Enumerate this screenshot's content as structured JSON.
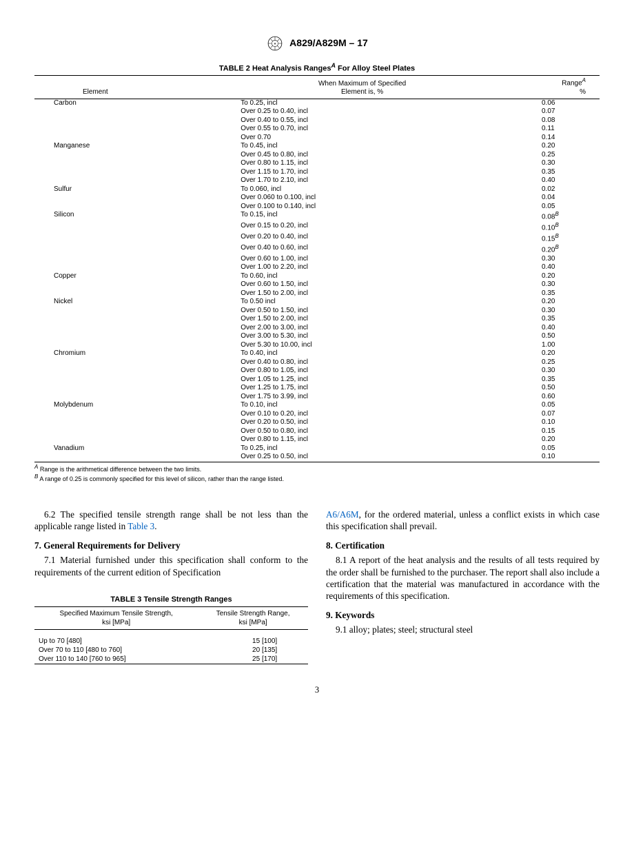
{
  "standard_title": "A829/A829M – 17",
  "table2": {
    "caption_prefix": "TABLE 2 Heat Analysis Ranges",
    "caption_sup": "A",
    "caption_suffix": " For Alloy Steel Plates",
    "header_col1": "Element",
    "header_col2_line1": "When Maximum of Specified",
    "header_col2_line2": "Element is, %",
    "header_col3_line1": "Range",
    "header_col3_sup": "A",
    "header_col3_line2": "%",
    "groups": [
      {
        "element": "Carbon",
        "rows": [
          {
            "cond": "To 0.25, incl",
            "range": "0.06"
          },
          {
            "cond": "Over 0.25 to 0.40, incl",
            "range": "0.07"
          },
          {
            "cond": "Over 0.40 to 0.55, incl",
            "range": "0.08"
          },
          {
            "cond": "Over 0.55 to 0.70, incl",
            "range": "0.11"
          },
          {
            "cond": "Over 0.70",
            "range": "0.14"
          }
        ]
      },
      {
        "element": "Manganese",
        "rows": [
          {
            "cond": "To 0.45, incl",
            "range": "0.20"
          },
          {
            "cond": "Over 0.45 to 0.80, incl",
            "range": "0.25"
          },
          {
            "cond": "Over 0.80 to 1.15, incl",
            "range": "0.30"
          },
          {
            "cond": "Over 1.15 to 1.70, incl",
            "range": "0.35"
          },
          {
            "cond": "Over 1.70 to 2.10, incl",
            "range": "0.40"
          }
        ]
      },
      {
        "element": "Sulfur",
        "rows": [
          {
            "cond": "To 0.060, incl",
            "range": "0.02"
          },
          {
            "cond": "Over 0.060 to 0.100, incl",
            "range": "0.04"
          },
          {
            "cond": "Over 0.100 to 0.140, incl",
            "range": "0.05"
          }
        ]
      },
      {
        "element": "Silicon",
        "rows": [
          {
            "cond": "To 0.15, incl",
            "range": "0.08",
            "sup": "B"
          },
          {
            "cond": "Over 0.15 to 0.20, incl",
            "range": "0.10",
            "sup": "B"
          },
          {
            "cond": "Over 0.20 to 0.40, incl",
            "range": "0.15",
            "sup": "B"
          },
          {
            "cond": "Over 0.40 to 0.60, incl",
            "range": "0.20",
            "sup": "B"
          },
          {
            "cond": "Over 0.60 to 1.00, incl",
            "range": "0.30"
          },
          {
            "cond": "Over 1.00 to 2.20, incl",
            "range": "0.40"
          }
        ]
      },
      {
        "element": "Copper",
        "rows": [
          {
            "cond": "To 0.60, incl",
            "range": "0.20"
          },
          {
            "cond": "Over 0.60 to 1.50, incl",
            "range": "0.30"
          },
          {
            "cond": "Over 1.50 to 2.00, incl",
            "range": "0.35"
          }
        ]
      },
      {
        "element": "Nickel",
        "rows": [
          {
            "cond": "To 0.50 incl",
            "range": "0.20"
          },
          {
            "cond": "Over 0.50 to 1.50, incl",
            "range": "0.30"
          },
          {
            "cond": "Over 1.50 to 2.00, incl",
            "range": "0.35"
          },
          {
            "cond": "Over 2.00 to 3.00, incl",
            "range": "0.40"
          },
          {
            "cond": "Over 3.00 to 5.30, incl",
            "range": "0.50"
          },
          {
            "cond": "Over 5.30 to 10.00, incl",
            "range": "1.00"
          }
        ]
      },
      {
        "element": "Chromium",
        "rows": [
          {
            "cond": "To 0.40, incl",
            "range": "0.20"
          },
          {
            "cond": "Over 0.40 to 0.80, incl",
            "range": "0.25"
          },
          {
            "cond": "Over 0.80 to 1.05, incl",
            "range": "0.30"
          },
          {
            "cond": "Over 1.05 to 1.25, incl",
            "range": "0.35"
          },
          {
            "cond": "Over 1.25 to 1.75, incl",
            "range": "0.50"
          },
          {
            "cond": "Over 1.75 to 3.99, incl",
            "range": "0.60"
          }
        ]
      },
      {
        "element": "Molybdenum",
        "rows": [
          {
            "cond": "To 0.10, incl",
            "range": "0.05"
          },
          {
            "cond": "Over 0.10 to 0.20, incl",
            "range": "0.07"
          },
          {
            "cond": "Over 0.20 to 0.50, incl",
            "range": "0.10"
          },
          {
            "cond": "Over 0.50 to 0.80, incl",
            "range": "0.15"
          },
          {
            "cond": "Over 0.80 to 1.15, incl",
            "range": "0.20"
          }
        ]
      },
      {
        "element": "Vanadium",
        "rows": [
          {
            "cond": "To 0.25, incl",
            "range": "0.05"
          },
          {
            "cond": "Over 0.25 to 0.50, incl",
            "range": "0.10"
          }
        ]
      }
    ],
    "footnote_a_mark": "A",
    "footnote_a": " Range is the arithmetical difference between the two limits.",
    "footnote_b_mark": "B",
    "footnote_b": " A range of 0.25 is commonly specified for this level of silicon, rather than the range listed."
  },
  "body": {
    "p62": "6.2 The specified tensile strength range shall be not less than the applicable range listed in ",
    "p62_link": "Table 3",
    "p62_suffix": ".",
    "head7": "7. General Requirements for Delivery",
    "p71": "7.1 Material furnished under this specification shall conform to the requirements of the current edition of Specification ",
    "a6_link": "A6/A6M",
    "p_right1": ", for the ordered material, unless a conflict exists in which case this specification shall prevail.",
    "head8": "8. Certification",
    "p81": "8.1 A report of the heat analysis and the results of all tests required by the order shall be furnished to the purchaser. The report shall also include a certification that the material was manufactured in accordance with the requirements of this specification.",
    "head9": "9. Keywords",
    "p91": "9.1 alloy; plates; steel; structural steel"
  },
  "table3": {
    "caption": "TABLE 3 Tensile Strength Ranges",
    "header_col1_line1": "Specified Maximum Tensile Strength,",
    "header_col1_line2": "ksi [MPa]",
    "header_col2_line1": "Tensile Strength Range,",
    "header_col2_line2": "ksi [MPa]",
    "rows": [
      {
        "c1": "Up to 70 [480]",
        "c2": "15 [100]"
      },
      {
        "c1": "Over 70 to 110 [480 to 760]",
        "c2": "20 [135]"
      },
      {
        "c1": "Over 110 to 140 [760 to 965]",
        "c2": "25 [170]"
      }
    ]
  },
  "page_number": "3"
}
